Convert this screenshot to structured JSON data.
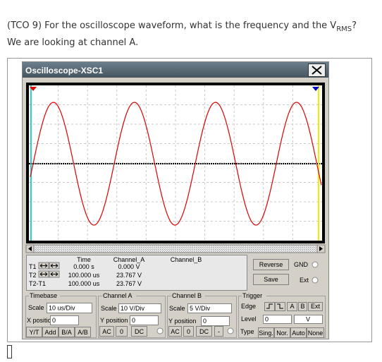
{
  "question": {
    "line1": "(TCO 9) For the oscilloscope waveform, what is the frequency and the V",
    "subscript": "RMS",
    "end": "?",
    "line2": "We are looking at channel A."
  },
  "window": {
    "title": "Oscilloscope-XSC1"
  },
  "readout": {
    "headers": [
      "Time",
      "Channel_A",
      "Channel_B"
    ],
    "rows": [
      {
        "label": "T1",
        "time": "0.000 s",
        "channel_a": "0.000 V"
      },
      {
        "label": "T2",
        "time": "100.000 us",
        "channel_a": "23.767 V"
      },
      {
        "label": "T2-T1",
        "time": "100.000 us",
        "channel_a": "23.767 V"
      }
    ]
  },
  "side": {
    "reverse": "Reverse",
    "save": "Save",
    "gnd": "GND",
    "ext": "Ext"
  },
  "timebase": {
    "title": "Timebase",
    "scale_label": "Scale",
    "scale": "10 us/Div",
    "xpos_label": "X position",
    "xpos": "0",
    "buttons": [
      "Y/T",
      "Add",
      "B/A",
      "A/B"
    ]
  },
  "channel_a": {
    "title": "Channel A",
    "scale_label": "Scale",
    "scale": "10 V/Div",
    "ypos_label": "Y position",
    "ypos": "0",
    "buttons": [
      "AC",
      "0",
      "DC"
    ]
  },
  "channel_b": {
    "title": "Channel B",
    "scale_label": "Scale",
    "scale": "5 V/Div",
    "ypos_label": "Y position",
    "ypos": "0",
    "buttons": [
      "AC",
      "0",
      "DC",
      "-"
    ]
  },
  "trigger": {
    "title": "Trigger",
    "edge_label": "Edge",
    "sources": [
      "A",
      "B",
      "Ext"
    ],
    "level_label": "Level",
    "level": "0",
    "level_unit": "V",
    "type_label": "Type",
    "types": [
      "Sing.",
      "Nor.",
      "Auto",
      "None"
    ]
  }
}
